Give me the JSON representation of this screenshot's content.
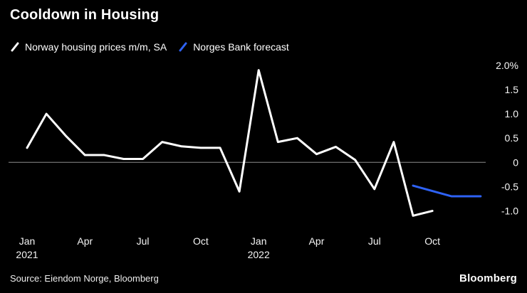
{
  "header": {
    "title": "Cooldown in Housing",
    "legend": [
      {
        "label": "Norway housing prices m/m, SA",
        "color": "#ffffff"
      },
      {
        "label": "Norges Bank forecast",
        "color": "#2e62f5"
      }
    ]
  },
  "footer": {
    "source": "Source: Eiendom Norge, Bloomberg",
    "logo": "Bloomberg"
  },
  "colors": {
    "background": "#000000",
    "text": "#ffffff",
    "zero_line": "#8c8c8c",
    "actual_series": "#ffffff",
    "forecast_series": "#2e62f5"
  },
  "chart_data": {
    "type": "line",
    "title": "Cooldown in Housing",
    "xlabel": "",
    "ylabel": "",
    "unit": "%",
    "x_unit": "month index from Jan 2021",
    "xlim": [
      0,
      24
    ],
    "ylim": [
      -1.3,
      2.1
    ],
    "grid": false,
    "zero_line": true,
    "legend_position": "top-left",
    "series": [
      {
        "name": "Norway housing prices m/m, SA",
        "color": "#ffffff",
        "x": [
          0,
          1,
          2,
          3,
          4,
          5,
          6,
          7,
          8,
          9,
          10,
          11,
          12,
          13,
          14,
          15,
          16,
          17,
          18,
          19,
          20,
          21
        ],
        "values": [
          0.3,
          1.0,
          0.55,
          0.15,
          0.15,
          0.07,
          0.07,
          0.42,
          0.33,
          0.3,
          0.3,
          -0.6,
          1.9,
          0.42,
          0.5,
          0.17,
          0.32,
          0.05,
          -0.55,
          0.42,
          -1.1,
          -1.0
        ]
      },
      {
        "name": "Norges Bank forecast",
        "color": "#2e62f5",
        "x": [
          20,
          22,
          23.5
        ],
        "values": [
          -0.48,
          -0.7,
          -0.7
        ]
      }
    ],
    "x_ticks": [
      {
        "index": 0,
        "label": "Jan",
        "sublabel": "2021"
      },
      {
        "index": 3,
        "label": "Apr"
      },
      {
        "index": 6,
        "label": "Jul"
      },
      {
        "index": 9,
        "label": "Oct"
      },
      {
        "index": 12,
        "label": "Jan",
        "sublabel": "2022"
      },
      {
        "index": 15,
        "label": "Apr"
      },
      {
        "index": 18,
        "label": "Jul"
      },
      {
        "index": 21,
        "label": "Oct"
      }
    ],
    "y_ticks": [
      {
        "value": 2.0,
        "label": "2.0%"
      },
      {
        "value": 1.5,
        "label": "1.5"
      },
      {
        "value": 1.0,
        "label": "1.0"
      },
      {
        "value": 0.5,
        "label": "0.5"
      },
      {
        "value": 0,
        "label": "0"
      },
      {
        "value": -0.5,
        "label": "-0.5"
      },
      {
        "value": -1.0,
        "label": "-1.0"
      }
    ]
  }
}
